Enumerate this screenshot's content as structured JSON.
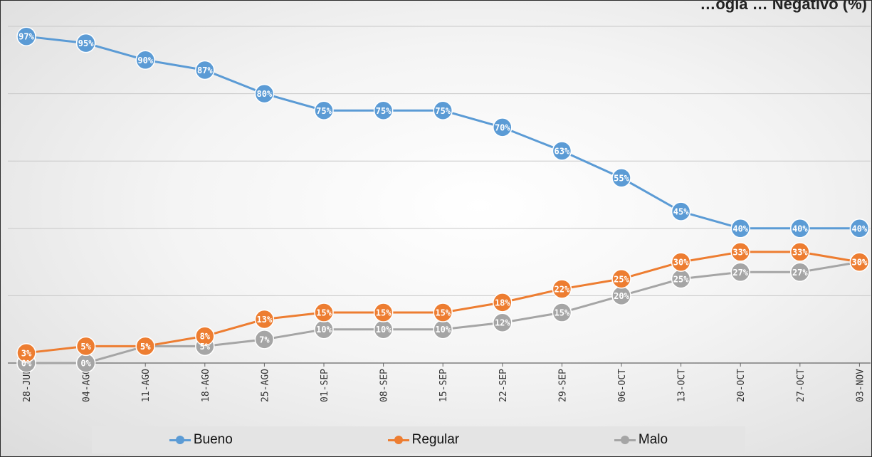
{
  "title": "…ogía … Negativo (%)",
  "colors": {
    "bueno": "#5b9bd5",
    "regular": "#ed7d31",
    "malo": "#a5a5a5"
  },
  "chart_data": {
    "type": "line",
    "title": "",
    "xlabel": "",
    "ylabel": "",
    "ylim": [
      0,
      100
    ],
    "grid": true,
    "legend": "bottom",
    "categories": [
      "28-JUL",
      "04-AGO",
      "11-AGO",
      "18-AGO",
      "25-AGO",
      "01-SEP",
      "08-SEP",
      "15-SEP",
      "22-SEP",
      "29-SEP",
      "06-OCT",
      "13-OCT",
      "20-OCT",
      "27-OCT",
      "03-NOV"
    ],
    "series": [
      {
        "name": "Bueno",
        "color": "#5b9bd5",
        "values": [
          97,
          95,
          90,
          87,
          80,
          75,
          75,
          75,
          70,
          63,
          55,
          45,
          40,
          40,
          40
        ]
      },
      {
        "name": "Regular",
        "color": "#ed7d31",
        "values": [
          3,
          5,
          5,
          8,
          13,
          15,
          15,
          15,
          18,
          22,
          25,
          30,
          33,
          33,
          30
        ]
      },
      {
        "name": "Malo",
        "color": "#a5a5a5",
        "values": [
          0,
          0,
          5,
          5,
          7,
          10,
          10,
          10,
          12,
          15,
          20,
          25,
          27,
          27,
          30
        ]
      }
    ]
  }
}
